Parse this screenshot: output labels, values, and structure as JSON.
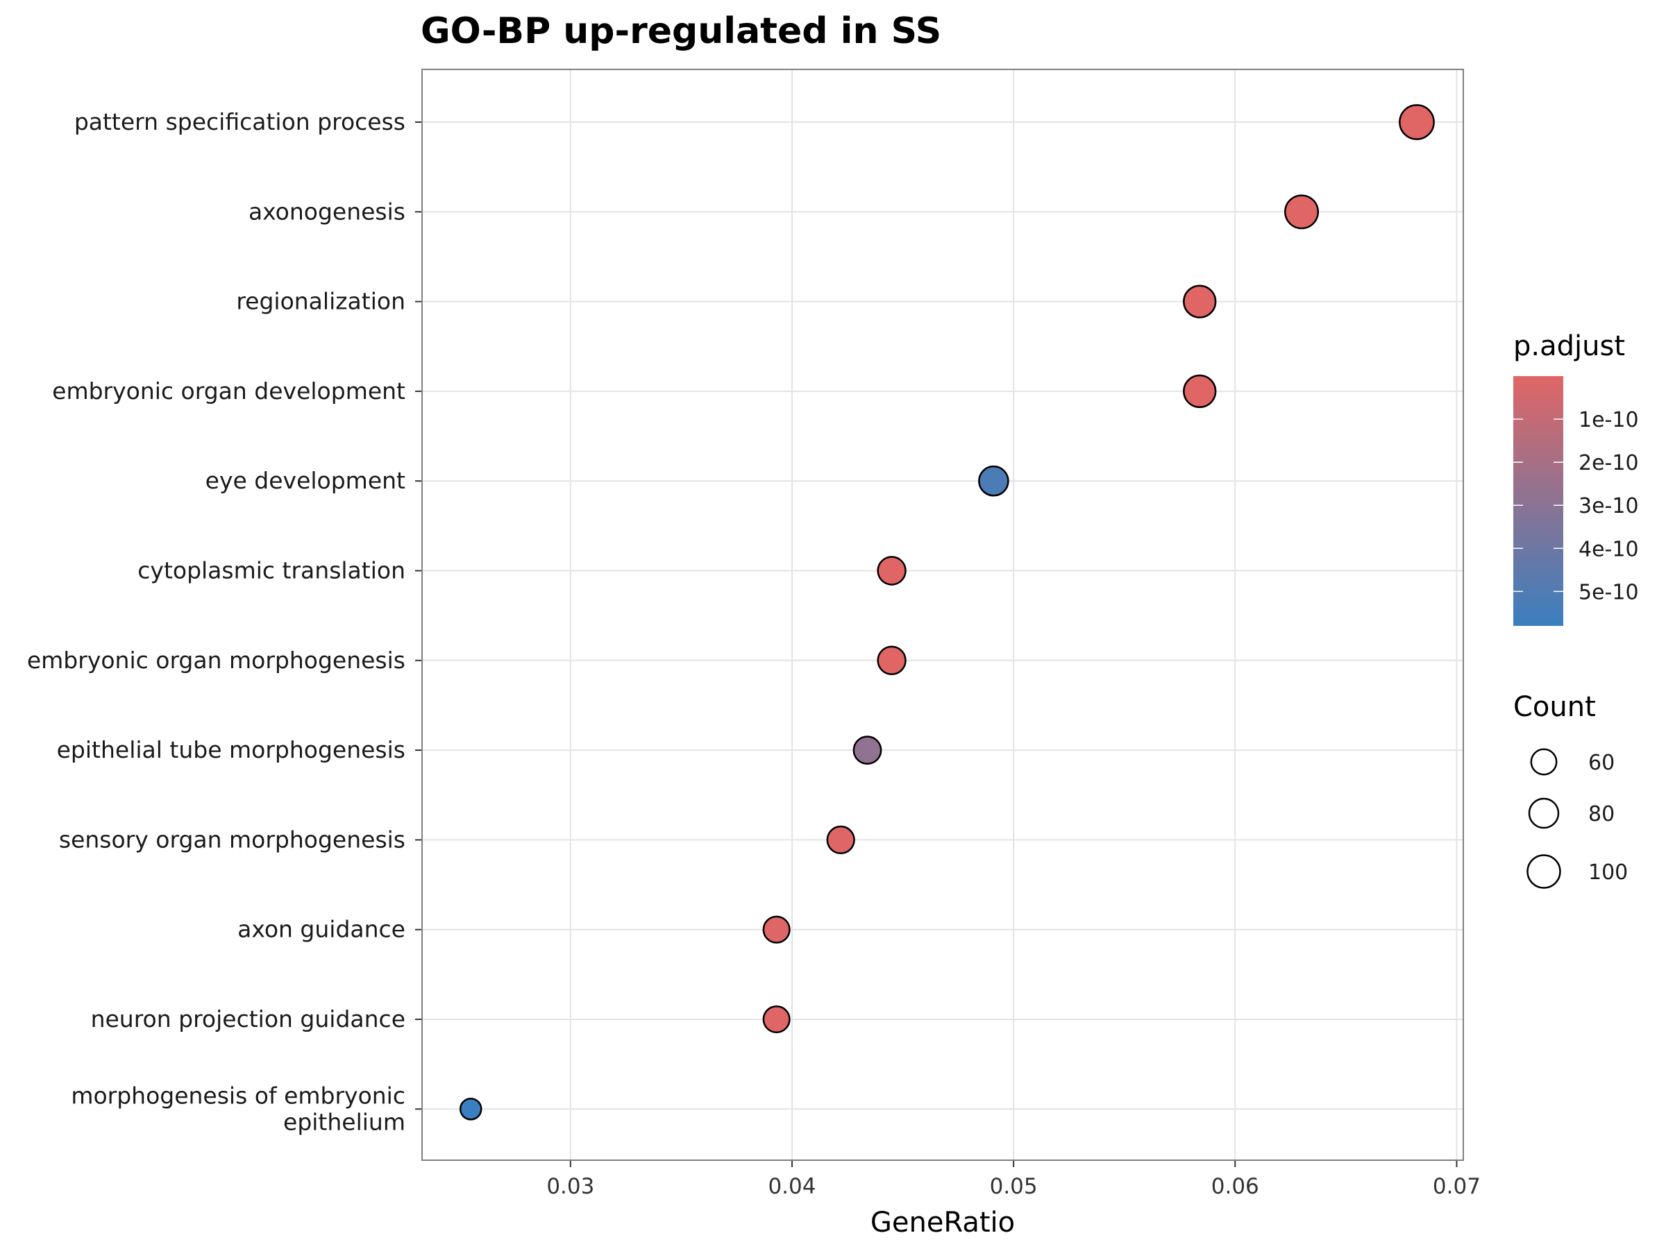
{
  "chart_data": {
    "type": "scatter",
    "title": "GO-BP up-regulated in SS",
    "xlabel": "GeneRatio",
    "ylabel": "",
    "xlim": [
      0.0233,
      0.0703
    ],
    "xticks": [
      "0.03",
      "0.04",
      "0.05",
      "0.06",
      "0.07"
    ],
    "grid": true,
    "points": [
      {
        "term": "pattern specification process",
        "gene_ratio": 0.0682,
        "count": 110,
        "p_adjust": 5e-13
      },
      {
        "term": "axonogenesis",
        "gene_ratio": 0.063,
        "count": 102,
        "p_adjust": 1e-12
      },
      {
        "term": "regionalization",
        "gene_ratio": 0.0584,
        "count": 95,
        "p_adjust": 5e-13
      },
      {
        "term": "embryonic organ development",
        "gene_ratio": 0.0584,
        "count": 95,
        "p_adjust": 5e-13
      },
      {
        "term": "eye development",
        "gene_ratio": 0.0491,
        "count": 80,
        "p_adjust": 5.2e-10
      },
      {
        "term": "cytoplasmic translation",
        "gene_ratio": 0.0445,
        "count": 72,
        "p_adjust": 1e-12
      },
      {
        "term": "embryonic organ morphogenesis",
        "gene_ratio": 0.0445,
        "count": 72,
        "p_adjust": 1e-12
      },
      {
        "term": "epithelial tube morphogenesis",
        "gene_ratio": 0.0434,
        "count": 70,
        "p_adjust": 2.8e-10
      },
      {
        "term": "sensory organ morphogenesis",
        "gene_ratio": 0.0422,
        "count": 68,
        "p_adjust": 5e-12
      },
      {
        "term": "axon guidance",
        "gene_ratio": 0.0393,
        "count": 64,
        "p_adjust": 5e-12
      },
      {
        "term": "neuron projection guidance",
        "gene_ratio": 0.0393,
        "count": 64,
        "p_adjust": 5e-12
      },
      {
        "term": "morphogenesis of embryonic\nepithelium",
        "gene_ratio": 0.0255,
        "count": 41,
        "p_adjust": 5.8e-10
      }
    ],
    "color_legend": {
      "title": "p.adjust",
      "labels": [
        "1e-10",
        "2e-10",
        "3e-10",
        "4e-10",
        "5e-10"
      ],
      "values": [
        1e-10,
        2e-10,
        3e-10,
        4e-10,
        5e-10
      ],
      "range": [
        0,
        5.8e-10
      ],
      "low_color": "#e06666",
      "high_color": "#3a7fbf"
    },
    "size_legend": {
      "title": "Count",
      "labels": [
        "60",
        "80",
        "100"
      ],
      "values": [
        60,
        80,
        100
      ]
    }
  }
}
